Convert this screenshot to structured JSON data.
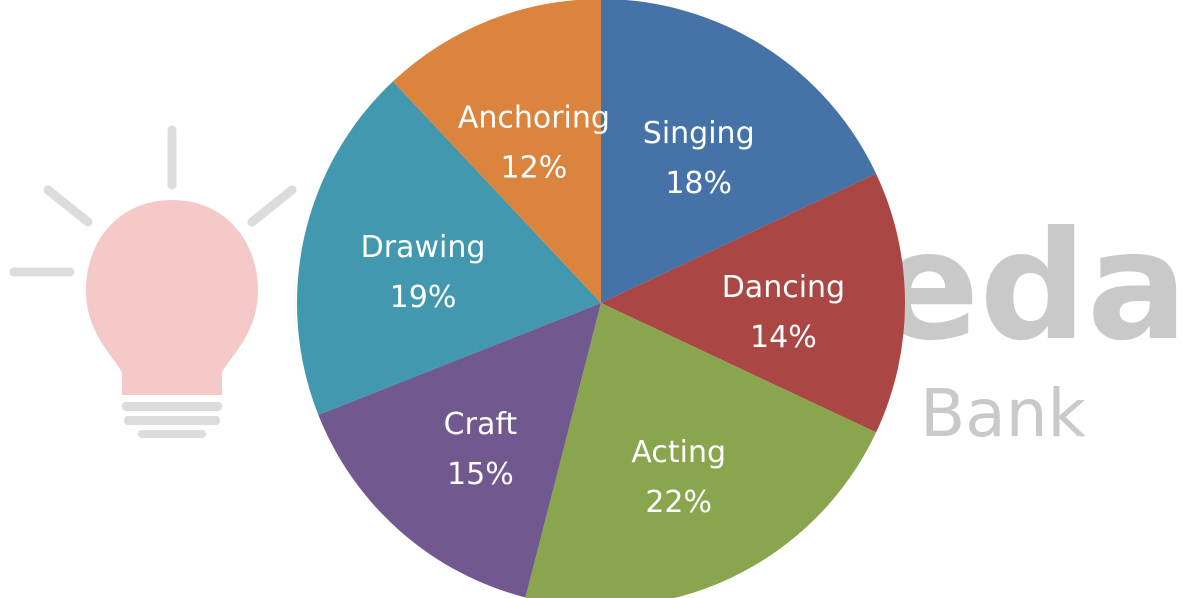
{
  "watermark": {
    "brand_text": "eeda",
    "brand_sub": "Bank",
    "bulb_color": "#f6c9c9",
    "ray_color": "#dcdcdc",
    "text_color": "#c9c9c9"
  },
  "chart_data": {
    "type": "pie",
    "title": "",
    "start_angle_deg": 0,
    "direction": "clockwise",
    "slices": [
      {
        "label": "Singing",
        "value": 18,
        "value_label": "18%",
        "color": "#4572a7"
      },
      {
        "label": "Dancing",
        "value": 14,
        "value_label": "14%",
        "color": "#aa4643"
      },
      {
        "label": "Acting",
        "value": 22,
        "value_label": "22%",
        "color": "#89a54e"
      },
      {
        "label": "Craft",
        "value": 15,
        "value_label": "15%",
        "color": "#71588f"
      },
      {
        "label": "Drawing",
        "value": 19,
        "value_label": "19%",
        "color": "#4198af"
      },
      {
        "label": "Anchoring",
        "value": 12,
        "value_label": "12%",
        "color": "#db843d"
      }
    ]
  }
}
